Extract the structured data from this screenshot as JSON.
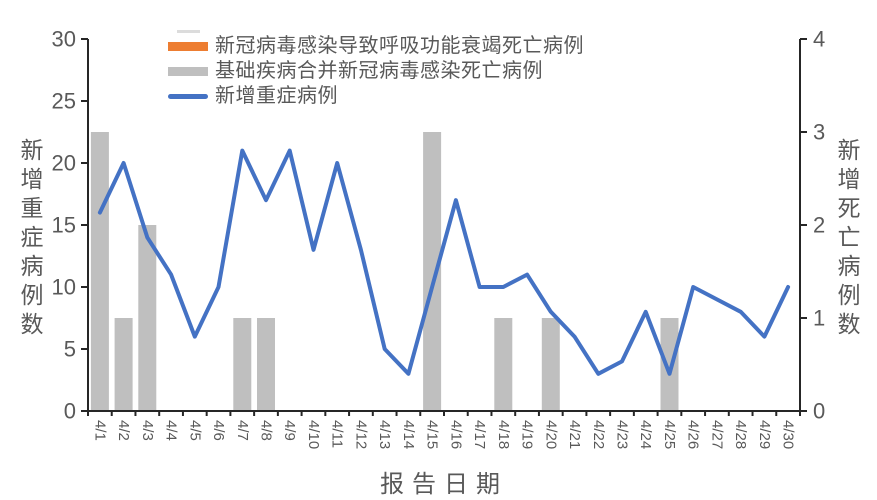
{
  "chart_data": {
    "type": "combo",
    "title": "",
    "categories": [
      "4/1",
      "4/2",
      "4/3",
      "4/4",
      "4/5",
      "4/6",
      "4/7",
      "4/8",
      "4/9",
      "4/10",
      "4/11",
      "4/12",
      "4/13",
      "4/14",
      "4/15",
      "4/16",
      "4/17",
      "4/18",
      "4/19",
      "4/20",
      "4/21",
      "4/22",
      "4/23",
      "4/24",
      "4/25",
      "4/26",
      "4/27",
      "4/28",
      "4/29",
      "4/30"
    ],
    "series": [
      {
        "name": "新冠病毒感染导致呼吸功能衰竭死亡病例",
        "type": "bar",
        "axis": "right",
        "color": "#ED7D31",
        "values": [
          0,
          0,
          0,
          0,
          0,
          0,
          0,
          0,
          0,
          0,
          0,
          0,
          0,
          0,
          0,
          0,
          0,
          0,
          0,
          0,
          0,
          0,
          0,
          0,
          0,
          0,
          0,
          0,
          0,
          0
        ]
      },
      {
        "name": "基础疾病合并新冠病毒感染死亡病例",
        "type": "bar",
        "axis": "right",
        "color": "#BFBFBF",
        "values": [
          3,
          1,
          2,
          0,
          0,
          0,
          1,
          1,
          0,
          0,
          0,
          0,
          0,
          0,
          3,
          0,
          0,
          1,
          0,
          1,
          0,
          0,
          0,
          0,
          1,
          0,
          0,
          0,
          0,
          0
        ]
      },
      {
        "name": "新增重症病例",
        "type": "line",
        "axis": "left",
        "color": "#4472C4",
        "values": [
          16,
          20,
          14,
          11,
          6,
          10,
          21,
          17,
          21,
          13,
          20,
          13,
          5,
          3,
          10,
          17,
          10,
          10,
          11,
          8,
          6,
          3,
          4,
          8,
          3,
          10,
          9,
          8,
          6,
          10
        ]
      }
    ],
    "left_axis": {
      "label": "新增重症病例数",
      "min": 0,
      "max": 30,
      "step": 5,
      "ticks": [
        0,
        5,
        10,
        15,
        20,
        25,
        30
      ]
    },
    "right_axis": {
      "label": "新增死亡病例数",
      "min": 0,
      "max": 4,
      "step": 1,
      "ticks": [
        0,
        1,
        2,
        3,
        4
      ]
    },
    "x_axis": {
      "label": "报告日期"
    },
    "grid": false,
    "legend_position": "top-left-inside",
    "axis_color": "#262626",
    "text_color": "#595959"
  }
}
